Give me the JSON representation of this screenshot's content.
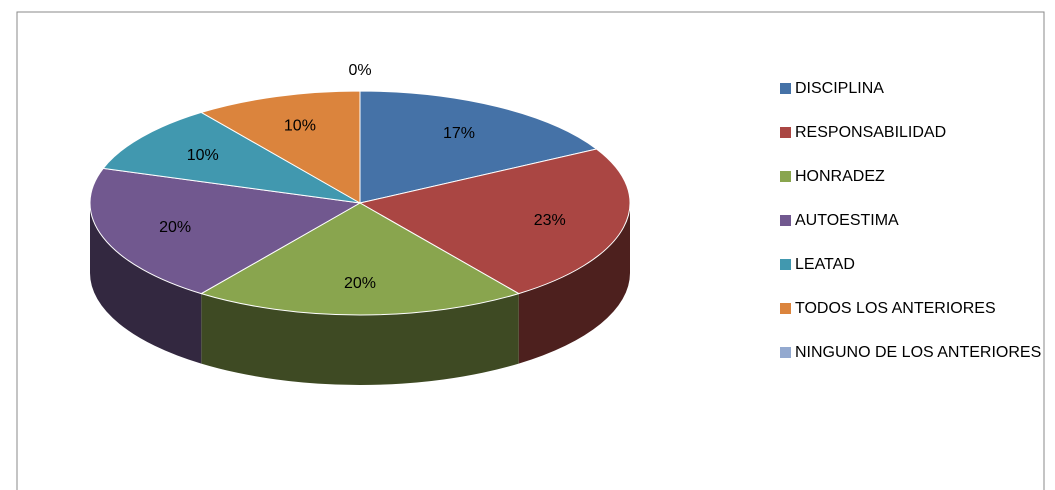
{
  "chart_data": {
    "type": "pie",
    "categories": [
      "DISCIPLINA",
      "RESPONSABILIDAD",
      "HONRADEZ",
      "AUTOESTIMA",
      "LEATAD",
      "TODOS LOS ANTERIORES",
      "NINGUNO DE LOS ANTERIORES"
    ],
    "values": [
      17,
      23,
      20,
      20,
      10,
      10,
      0
    ],
    "value_labels": [
      "17%",
      "23%",
      "20%",
      "20%",
      "10%",
      "10%",
      "0%"
    ],
    "colors": [
      "#4572A7",
      "#AA4643",
      "#89A54E",
      "#71588F",
      "#4198AF",
      "#DB843D",
      "#93A9CF"
    ],
    "legend": "right"
  }
}
